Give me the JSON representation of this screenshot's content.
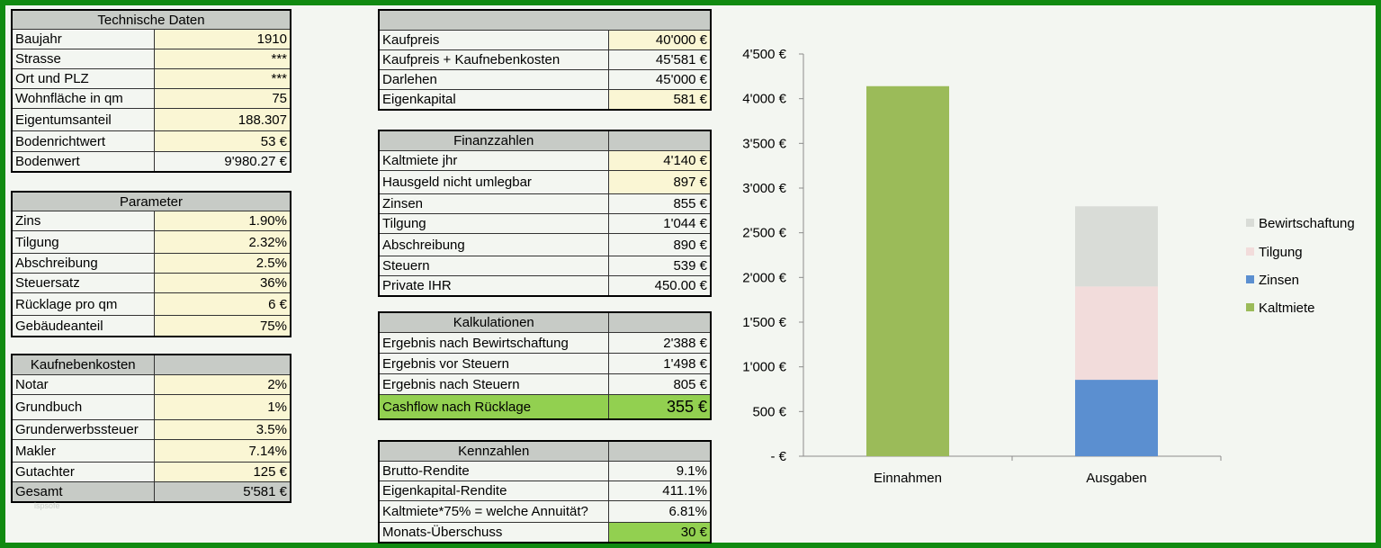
{
  "technische_daten": {
    "header": "Technische Daten",
    "rows": [
      {
        "label": "Baujahr",
        "value": "1910",
        "hl": true
      },
      {
        "label": "Strasse",
        "value": "***",
        "hl": true
      },
      {
        "label": "Ort und PLZ",
        "value": "***",
        "hl": true
      },
      {
        "label": "Wohnfläche in qm",
        "value": "75",
        "hl": true
      },
      {
        "label": "Eigentumsanteil",
        "value": "188.307",
        "hl": true
      },
      {
        "label": "Bodenrichtwert",
        "value": "53 €",
        "hl": true
      },
      {
        "label": "Bodenwert",
        "value": "9'980.27 €",
        "hl": false
      }
    ]
  },
  "parameter": {
    "header": "Parameter",
    "rows": [
      {
        "label": "Zins",
        "value": "1.90%"
      },
      {
        "label": "Tilgung",
        "value": "2.32%"
      },
      {
        "label": "Abschreibung",
        "value": "2.5%"
      },
      {
        "label": "Steuersatz",
        "value": "36%"
      },
      {
        "label": "Rücklage pro qm",
        "value": "6 €"
      },
      {
        "label": "Gebäudeanteil",
        "value": "75%"
      }
    ]
  },
  "kaufnebenkosten": {
    "header": "Kaufnebenkosten",
    "rows": [
      {
        "label": "Notar",
        "value": "2%"
      },
      {
        "label": "Grundbuch",
        "value": "1%"
      },
      {
        "label": "Grunderwerbssteuer",
        "value": "3.5%"
      },
      {
        "label": "Makler",
        "value": "7.14%"
      },
      {
        "label": "Gutachter",
        "value": "125 €"
      }
    ],
    "total": {
      "label": "Gesamt",
      "value": "5'581 €"
    }
  },
  "kaufpreis": {
    "header": "",
    "rows": [
      {
        "label": "Kaufpreis",
        "value": "40'000 €",
        "hl": true
      },
      {
        "label": "Kaufpreis + Kaufnebenkosten",
        "value": "45'581 €",
        "hl": false
      },
      {
        "label": "Darlehen",
        "value": "45'000 €",
        "hl": false
      },
      {
        "label": "Eigenkapital",
        "value": "581 €",
        "hl": true
      }
    ]
  },
  "finanzzahlen": {
    "header": "Finanzzahlen",
    "rows": [
      {
        "label": "Kaltmiete jhr",
        "value": "4'140 €",
        "hl": true
      },
      {
        "label": "Hausgeld nicht umlegbar",
        "value": "897 €",
        "hl": true
      },
      {
        "label": "Zinsen",
        "value": "855 €",
        "hl": false
      },
      {
        "label": "Tilgung",
        "value": "1'044 €",
        "hl": false
      },
      {
        "label": "Abschreibung",
        "value": "890 €",
        "hl": false
      },
      {
        "label": "Steuern",
        "value": "539 €",
        "hl": false
      },
      {
        "label": "Private IHR",
        "value": "450.00 €",
        "hl": false
      }
    ]
  },
  "kalkulationen": {
    "header": "Kalkulationen",
    "rows": [
      {
        "label": "Ergebnis nach Bewirtschaftung",
        "value": "2'388 €"
      },
      {
        "label": "Ergebnis vor Steuern",
        "value": "1'498 €"
      },
      {
        "label": "Ergebnis nach Steuern",
        "value": "805 €"
      }
    ],
    "cashflow": {
      "label": "Cashflow nach Rücklage",
      "value": "355 €"
    }
  },
  "kennzahlen": {
    "header": "Kennzahlen",
    "rows": [
      {
        "label": "Brutto-Rendite",
        "value": "9.1%"
      },
      {
        "label": "Eigenkapital-Rendite",
        "value": "411.1%"
      },
      {
        "label": "Kaltmiete*75% = welche Annuität?",
        "value": "6.81%"
      }
    ],
    "monats": {
      "label": "Monats-Überschuss",
      "value": "30 €"
    }
  },
  "watermark": "ispsofe",
  "colors": {
    "frame": "#118a11",
    "header": "#c7cbc6",
    "input": "#faf6d4",
    "highlight": "#92d050",
    "kaltmiete": "#9bbb59",
    "zinsen": "#5b8fd0",
    "tilgung": "#f2dcdb",
    "bewirtschaftung": "#d9dcd7"
  },
  "chart_data": {
    "type": "bar",
    "stacked": true,
    "categories": [
      "Einnahmen",
      "Ausgaben"
    ],
    "series": [
      {
        "name": "Kaltmiete",
        "values": [
          4140,
          0
        ],
        "color": "#9bbb59"
      },
      {
        "name": "Zinsen",
        "values": [
          0,
          855
        ],
        "color": "#5b8fd0"
      },
      {
        "name": "Tilgung",
        "values": [
          0,
          1044
        ],
        "color": "#f2dcdb"
      },
      {
        "name": "Bewirtschaftung",
        "values": [
          0,
          897
        ],
        "color": "#d9dcd7"
      }
    ],
    "ylim": [
      0,
      4500
    ],
    "yticks": [
      "-  €",
      "500 €",
      "1'000 €",
      "1'500 €",
      "2'000 €",
      "2'500 €",
      "3'000 €",
      "3'500 €",
      "4'000 €",
      "4'500 €"
    ],
    "legend_order": [
      "Bewirtschaftung",
      "Tilgung",
      "Zinsen",
      "Kaltmiete"
    ],
    "legend_position": "right",
    "grid": false
  }
}
